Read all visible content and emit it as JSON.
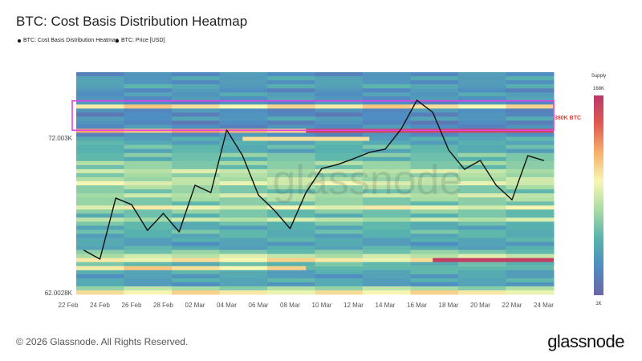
{
  "title": "BTC: Cost Basis Distribution Heatmap",
  "legend": [
    {
      "label": "BTC: Cost Basis Distribution Heatmap"
    },
    {
      "label": "BTC: Price [USD]"
    }
  ],
  "footer": "© 2026 Glassnode. All Rights Reserved.",
  "brand": "glassnode",
  "watermark": "glassnode",
  "chart_data": {
    "type": "heatmap",
    "title": "BTC: Cost Basis Distribution Heatmap",
    "x_tick_labels": [
      "22 Feb",
      "24 Feb",
      "26 Feb",
      "28 Feb",
      "02 Mar",
      "04 Mar",
      "06 Mar",
      "08 Mar",
      "10 Mar",
      "12 Mar",
      "14 Mar",
      "16 Mar",
      "18 Mar",
      "20 Mar",
      "22 Mar",
      "24 Mar"
    ],
    "y_tick_labels": [
      {
        "label": "72.003K",
        "value": 72003
      },
      {
        "label": "62.0028K",
        "value": 62002.8
      }
    ],
    "ylim": [
      61900,
      76250
    ],
    "colorbar": {
      "title": "Supply",
      "max_label": "168K",
      "min_label": "1K"
    },
    "colors": [
      "#6b66a8",
      "#4f8cc2",
      "#58b4ad",
      "#a8dca4",
      "#f7f7b4",
      "#f7b06a",
      "#e05a50",
      "#b8396a"
    ],
    "annotation": {
      "label": "380K BTC",
      "color": "#e8372f",
      "box_color": "#e040e8",
      "price_range": [
        72500,
        74400
      ]
    },
    "heatmap_rows_top_to_bottom": [
      {
        "v": 0.15
      },
      {
        "v": 0.22
      },
      {
        "v": 0.18
      },
      {
        "v": 0.24
      },
      {
        "v": 0.15
      },
      {
        "v": 0.2
      },
      {
        "v": 0.18
      },
      {
        "v": 0.15
      },
      {
        "v": 0.62
      },
      {
        "v": 0.15
      },
      {
        "v": 0.12
      },
      {
        "v": 0.2
      },
      {
        "v": 0.12
      },
      {
        "v": 0.15
      },
      {
        "v": 0.7,
        "segments": [
          {
            "from_day": 15,
            "v": 0.93
          }
        ]
      },
      {
        "v": 0.15
      },
      {
        "v": 0.25,
        "segments": [
          {
            "from_day": 11,
            "to_day": 19,
            "v": 0.62
          }
        ]
      },
      {
        "v": 0.25
      },
      {
        "v": 0.3
      },
      {
        "v": 0.25
      },
      {
        "v": 0.35
      },
      {
        "v": 0.3
      },
      {
        "v": 0.4
      },
      {
        "v": 0.35
      },
      {
        "v": 0.48
      },
      {
        "v": 0.4
      },
      {
        "v": 0.45
      },
      {
        "v": 0.52
      },
      {
        "v": 0.4
      },
      {
        "v": 0.35
      },
      {
        "v": 0.47
      },
      {
        "v": 0.4
      },
      {
        "v": 0.35
      },
      {
        "v": 0.55
      },
      {
        "v": 0.35
      },
      {
        "v": 0.3
      },
      {
        "v": 0.47
      },
      {
        "v": 0.3
      },
      {
        "v": 0.25
      },
      {
        "v": 0.3
      },
      {
        "v": 0.25
      },
      {
        "v": 0.25
      },
      {
        "v": 0.2
      },
      {
        "v": 0.25
      },
      {
        "v": 0.35
      },
      {
        "v": 0.48
      },
      {
        "v": 0.6,
        "segments": [
          {
            "from_day": 23,
            "v": 0.97
          }
        ]
      },
      {
        "v": 0.3
      },
      {
        "v": 0.62,
        "segments": [
          {
            "from_day": 15,
            "v": 0.3
          }
        ]
      },
      {
        "v": 0.25
      },
      {
        "v": 0.2
      },
      {
        "v": 0.25
      },
      {
        "v": 0.2
      },
      {
        "v": 0.42
      },
      {
        "v": 0.6
      }
    ],
    "price_series": {
      "name": "BTC: Price [USD]",
      "dates": [
        "23 Feb",
        "24 Feb",
        "25 Feb",
        "26 Feb",
        "27 Feb",
        "28 Feb",
        "01 Mar",
        "02 Mar",
        "03 Mar",
        "04 Mar",
        "05 Mar",
        "06 Mar",
        "07 Mar",
        "08 Mar",
        "09 Mar",
        "10 Mar",
        "11 Mar",
        "12 Mar",
        "13 Mar",
        "14 Mar",
        "15 Mar",
        "16 Mar",
        "17 Mar",
        "18 Mar",
        "19 Mar",
        "20 Mar",
        "21 Mar",
        "22 Mar",
        "23 Mar",
        "24 Mar"
      ],
      "values": [
        64750,
        64180,
        68120,
        67700,
        66040,
        67130,
        65940,
        68950,
        68480,
        72520,
        70860,
        68320,
        67340,
        66150,
        68480,
        70030,
        70290,
        70660,
        71070,
        71280,
        72570,
        74440,
        73660,
        71230,
        69980,
        70550,
        68950,
        68010,
        70860,
        70550
      ]
    }
  }
}
